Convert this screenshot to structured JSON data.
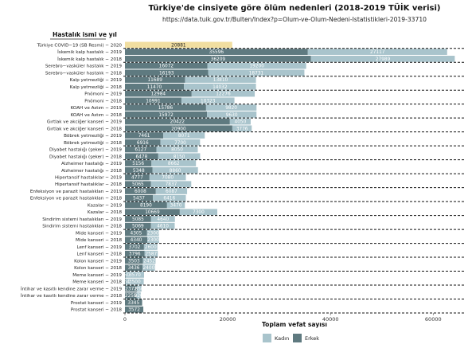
{
  "chart_data": {
    "type": "bar",
    "orientation": "horizontal",
    "stacked": true,
    "title": "Türkiye'de cinsiyete göre ölüm nedenleri (2018-2019 TÜİK verisi)",
    "subtitle": "https://data.tuik.gov.tr/Bulten/Index?p=Olum-ve-Olum-Nedeni-Istatistikleri-2019-33710",
    "ylabel": "Hastalık ismi ve yıl",
    "xlabel": "Toplam vefat sayısı",
    "xlim": [
      0,
      66000
    ],
    "xticks": [
      0,
      20000,
      40000,
      60000
    ],
    "xtick_labels": [
      "0",
      "20000",
      "40000",
      "60000"
    ],
    "grid": false,
    "legend_position": "bottom-right",
    "categories": [
      "Türkiye COVID−19 (SB Resmi) − 2020",
      "İskemik kalp hastalık − 2019",
      "İskemik kalp hastalık − 2018",
      "Serebro−vasküler hastalık − 2019",
      "Serebro−vasküler hastalık − 2018",
      "Kalp yetmezliği − 2019",
      "Kalp yetmezliği − 2018",
      "Pnömoni − 2019",
      "Pnömoni − 2018",
      "KOAH ve Astım − 2019",
      "KOAH ve Astım − 2018",
      "Gırtlak ve akciğer kanseri − 2019",
      "Gırtlak ve akciğer kanseri − 2018",
      "Böbrek yetmezliği − 2019",
      "Böbrek yetmezliği − 2018",
      "Diyabet hastalığı (şeker) − 2019",
      "Diyabet hastalığı (şeker) − 2018",
      "Alzheimer hastalığı − 2019",
      "Alzheimer hastalığı − 2018",
      "Hipertansif hastalıklar − 2019",
      "Hipertansif hastalıklar − 2018",
      "Enfeksiyon ve parazit hastalıkları − 2019",
      "Enfeksiyon ve parazit hastalıkları − 2018",
      "Kazalar − 2019",
      "Kazalar − 2018",
      "Sindirim sistemi hastalıkları − 2019",
      "Sindirim sistemi hastalıkları − 2018",
      "Mide kanseri − 2019",
      "Mide kanseri − 2018",
      "Lenf kanseri − 2019",
      "Lenf kanseri − 2018",
      "Kolon kanseri − 2019",
      "Kolon kanseri − 2018",
      "Meme kanseri − 2019",
      "Meme kanseri − 2018",
      "İntihar ve kasıtlı kendine zarar verme − 2019",
      "İntihar ve kasıtlı kendine zarar verme − 2018",
      "Prostat kanseri − 2019",
      "Prostat kanseri − 2018"
    ],
    "covid_total": 20881,
    "covid_color": "#f1deA0",
    "series": [
      {
        "name": "Erkek",
        "color": "#5f7a80",
        "values": [
          null,
          35596,
          36209,
          16072,
          16193,
          11689,
          11470,
          12984,
          10991,
          15786,
          15972,
          20422,
          20900,
          7461,
          6916,
          6127,
          6478,
          5156,
          5348,
          4777,
          5065,
          6008,
          5437,
          8190,
          10669,
          5085,
          5069,
          4305,
          4340,
          3702,
          3796,
          3503,
          3436,
          150,
          154,
          2372,
          2255,
          3345,
          3572
        ]
      },
      {
        "name": "Kadın",
        "color": "#a9c4cc",
        "values": [
          null,
          27117,
          27989,
          19200,
          18731,
          13810,
          14032,
          12276,
          10323,
          9820,
          9630,
          4050,
          3776,
          8071,
          7700,
          8050,
          8150,
          8662,
          8860,
          7080,
          7837,
          6087,
          6416,
          3470,
          7300,
          4640,
          4610,
          2300,
          2300,
          2600,
          2587,
          2452,
          2400,
          3570,
          3500,
          850,
          820,
          0,
          0
        ]
      }
    ]
  },
  "legend": {
    "items": [
      {
        "label": "Kadın",
        "color": "#a9c4cc"
      },
      {
        "label": "Erkek",
        "color": "#5f7a80"
      }
    ]
  }
}
